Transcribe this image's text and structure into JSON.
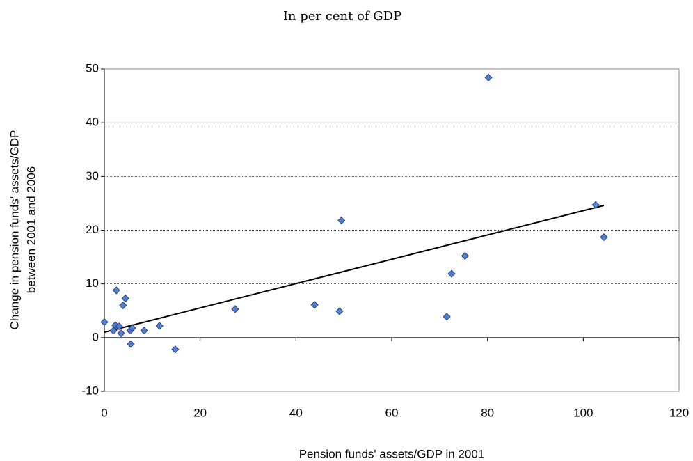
{
  "chart_data": {
    "type": "scatter",
    "title": "In per cent of GDP",
    "xlabel": "Pension funds' assets/GDP in 2001",
    "ylabel": [
      "Change in pension funds' assets/GDP",
      "between 2001 and 2006"
    ],
    "series": [
      {
        "color": "#4f7fd0",
        "x": [
          0,
          1.9,
          2.3,
          2.5,
          3.1,
          3.5,
          3.9,
          4.4,
          5.4,
          5.8,
          5.5,
          8.3,
          11.5,
          14.8,
          27.3,
          43.9,
          49.1,
          49.5,
          71.5,
          72.5,
          75.3,
          80.2,
          102.6,
          104.3
        ],
        "values": [
          2.9,
          1.3,
          2.3,
          8.8,
          2.1,
          0.8,
          6.0,
          7.3,
          1.3,
          1.8,
          -1.2,
          1.3,
          2.2,
          -2.2,
          5.3,
          6.1,
          4.9,
          21.8,
          3.9,
          11.9,
          15.2,
          48.4,
          24.7,
          18.7
        ]
      }
    ],
    "trendline": {
      "x": [
        0,
        104.3
      ],
      "values": [
        1.0,
        24.6
      ],
      "color": "#000000"
    },
    "xlim": [
      0,
      120
    ],
    "xticks": [
      0,
      20,
      40,
      60,
      80,
      100,
      120
    ],
    "ylim": [
      -10,
      50
    ],
    "yticks": [
      -10,
      0,
      10,
      20,
      30,
      40,
      50
    ],
    "grid": true
  }
}
